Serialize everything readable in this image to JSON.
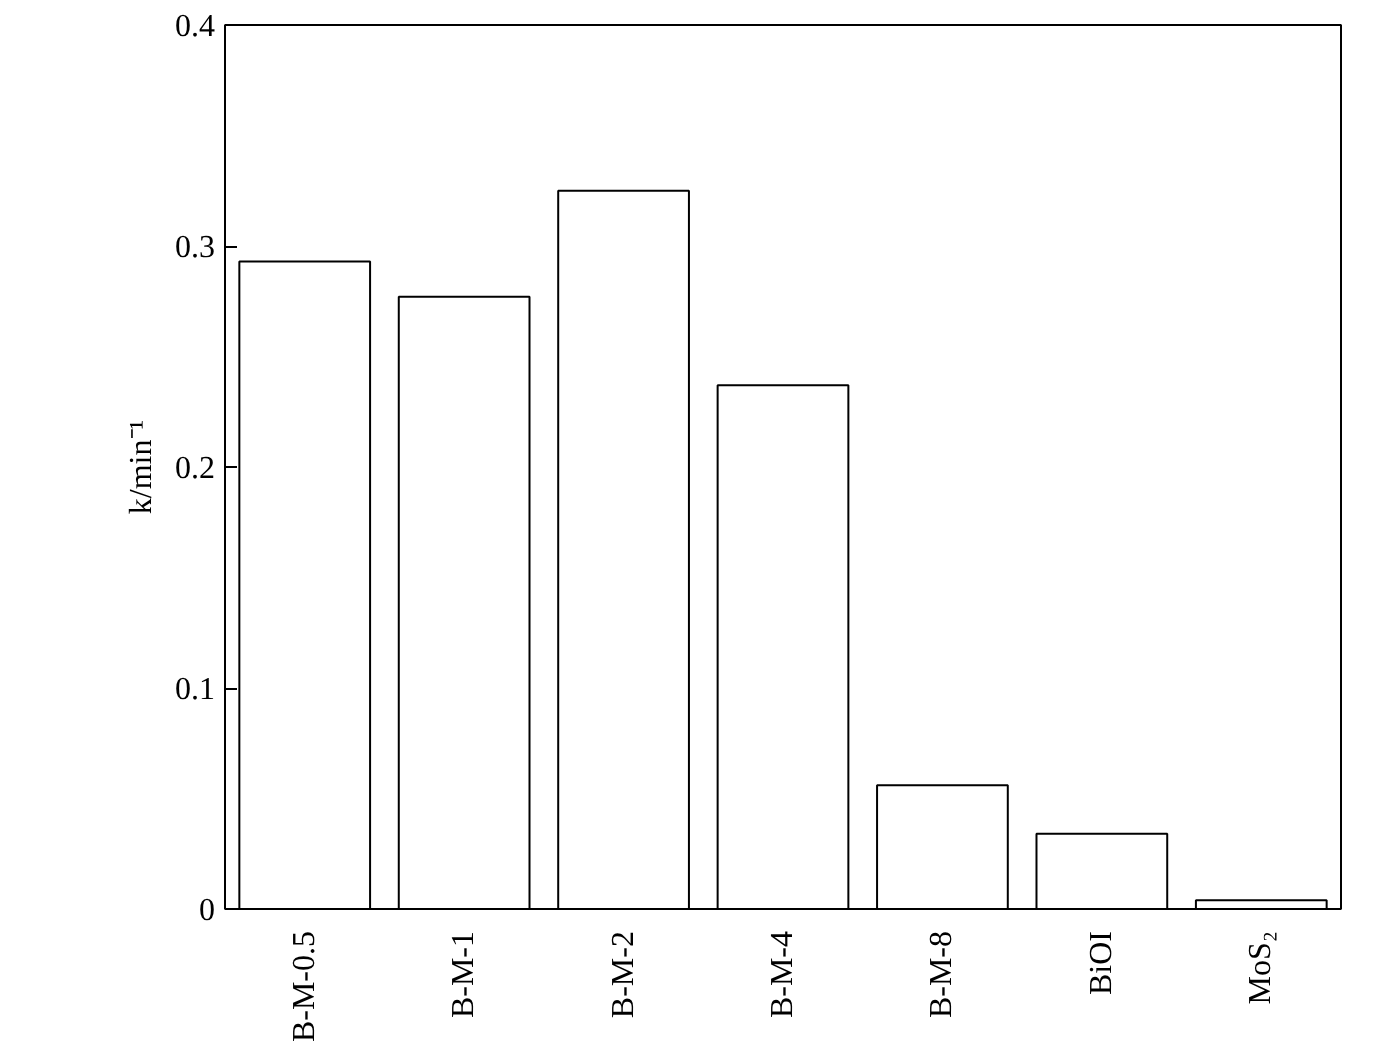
{
  "chart_data": {
    "type": "bar",
    "ylabel": "k/min⁻¹",
    "categories": [
      "B-M-0.5",
      "B-M-1",
      "B-M-2",
      "B-M-4",
      "B-M-8",
      "BiOI",
      "MoS₂"
    ],
    "values": [
      0.293,
      0.277,
      0.325,
      0.237,
      0.056,
      0.034,
      0.004
    ],
    "color": "#ffffff",
    "ylim": [
      0,
      0.4
    ],
    "yticks": [
      0,
      0.1,
      0.2,
      0.3,
      0.4
    ],
    "grid": false
  }
}
